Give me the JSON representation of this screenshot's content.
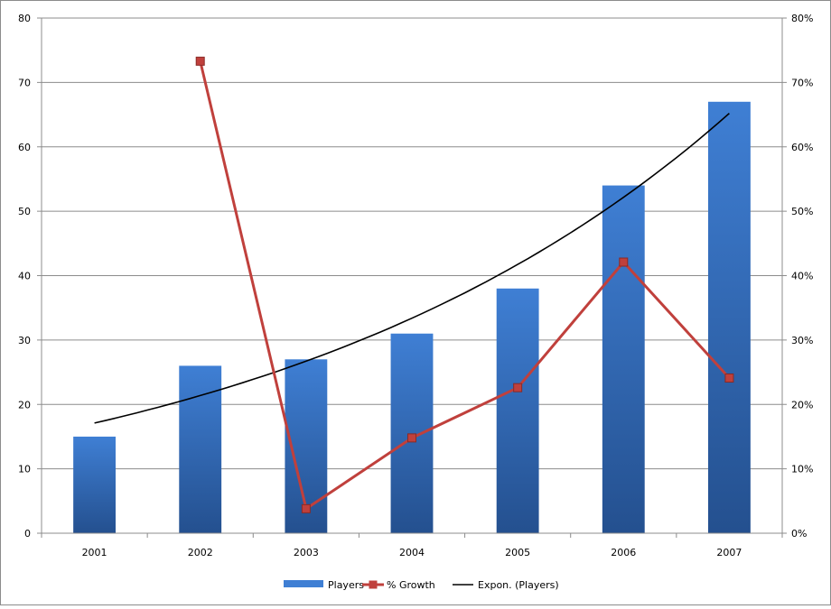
{
  "chart_data": {
    "type": "bar",
    "categories": [
      "2001",
      "2002",
      "2003",
      "2004",
      "2005",
      "2006",
      "2007"
    ],
    "series": [
      {
        "name": "Players",
        "kind": "bar",
        "axis": "left",
        "values": [
          15,
          26,
          27,
          31,
          38,
          54,
          67
        ]
      },
      {
        "name": "% Growth",
        "kind": "line",
        "axis": "right",
        "marker": "square",
        "values": [
          null,
          73.3,
          3.8,
          14.8,
          22.6,
          42.1,
          24.1
        ]
      },
      {
        "name": "Expon. (Players)",
        "kind": "trendline",
        "axis": "left",
        "values": [
          17.1,
          21.4,
          26.6,
          33.2,
          41.5,
          51.9,
          65.2
        ]
      }
    ],
    "y_left": {
      "ylim": [
        0,
        80
      ],
      "ticks": [
        "0",
        "10",
        "20",
        "30",
        "40",
        "50",
        "60",
        "70",
        "80"
      ]
    },
    "y_right": {
      "ylim": [
        0,
        80
      ],
      "ticks": [
        "0%",
        "10%",
        "20%",
        "30%",
        "40%",
        "50%",
        "60%",
        "70%",
        "80%"
      ]
    },
    "grid": true,
    "legend_position": "bottom",
    "colors": {
      "bar_top": "#3f7fd4",
      "bar_bottom": "#24508f",
      "growth_line": "#c0403c",
      "trendline": "#000000",
      "grid": "#8c8c8c"
    }
  }
}
